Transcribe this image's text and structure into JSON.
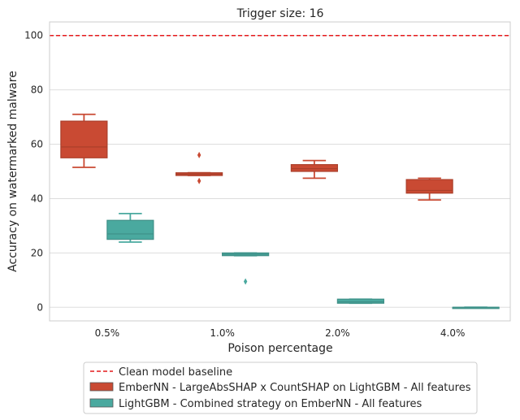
{
  "chart_data": {
    "type": "box",
    "title": "Trigger size: 16",
    "xlabel": "Poison percentage",
    "ylabel": "Accuracy on watermarked malware",
    "categories": [
      "0.5%",
      "1.0%",
      "2.0%",
      "4.0%"
    ],
    "ylim": [
      -5,
      105
    ],
    "yticks": [
      0,
      20,
      40,
      60,
      80,
      100
    ],
    "grid": "horizontal",
    "baseline": {
      "name": "Clean model baseline",
      "value": 100,
      "color": "#e41a1c",
      "style": "dashed"
    },
    "series": [
      {
        "name": "EmberNN - LargeAbsSHAP x CountSHAP on LightGBM - All features",
        "color": "#c94a33",
        "boxes": [
          {
            "whisker_low": 51.5,
            "q1": 55,
            "median": 59,
            "q3": 68.5,
            "whisker_high": 71,
            "outliers": []
          },
          {
            "whisker_low": 48.5,
            "q1": 48.5,
            "median": 49,
            "q3": 49.5,
            "whisker_high": 49.5,
            "outliers": [
              56,
              46.5
            ]
          },
          {
            "whisker_low": 47.5,
            "q1": 50,
            "median": 51,
            "q3": 52.5,
            "whisker_high": 54,
            "outliers": []
          },
          {
            "whisker_low": 39.5,
            "q1": 42,
            "median": 43,
            "q3": 47,
            "whisker_high": 47.5,
            "outliers": []
          }
        ]
      },
      {
        "name": "LightGBM - Combined strategy on EmberNN - All features",
        "color": "#4aa99f",
        "boxes": [
          {
            "whisker_low": 24,
            "q1": 25,
            "median": 27,
            "q3": 32,
            "whisker_high": 34.5,
            "outliers": []
          },
          {
            "whisker_low": 19,
            "q1": 19,
            "median": 19.5,
            "q3": 20,
            "whisker_high": 20,
            "outliers": [
              9.5
            ]
          },
          {
            "whisker_low": 1.5,
            "q1": 1.5,
            "median": 2,
            "q3": 3,
            "whisker_high": 3,
            "outliers": []
          },
          {
            "whisker_low": 0,
            "q1": 0,
            "median": 0,
            "q3": 0,
            "whisker_high": 0,
            "outliers": []
          }
        ]
      }
    ]
  }
}
